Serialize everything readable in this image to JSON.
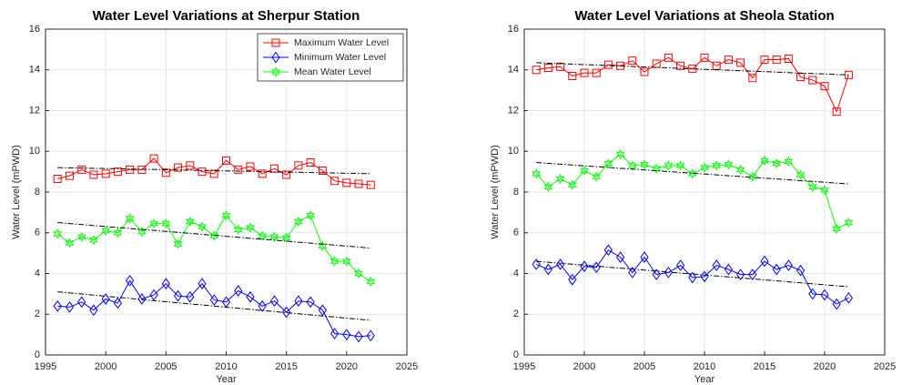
{
  "chart_data": [
    {
      "type": "line",
      "title": "Water Level Variations at Sherpur Station",
      "x_label": "Year",
      "y_label": "Water Level (mPWD)",
      "x": [
        1996,
        1997,
        1998,
        1999,
        2000,
        2001,
        2002,
        2003,
        2004,
        2005,
        2006,
        2007,
        2008,
        2009,
        2010,
        2011,
        2012,
        2013,
        2014,
        2015,
        2016,
        2017,
        2018,
        2019,
        2020,
        2021,
        2022
      ],
      "series": [
        {
          "name": "Maximum Water Level",
          "color": "#ff0000",
          "marker": "square",
          "values": [
            8.65,
            8.8,
            9.1,
            8.85,
            8.9,
            9.0,
            9.1,
            9.1,
            9.65,
            8.95,
            9.2,
            9.3,
            9.0,
            8.9,
            9.55,
            9.1,
            9.25,
            8.9,
            9.15,
            8.85,
            9.3,
            9.45,
            9.05,
            8.55,
            8.45,
            8.4,
            8.35
          ]
        },
        {
          "name": "Minimum Water Level",
          "color": "#0000ff",
          "marker": "diamond",
          "values": [
            2.4,
            2.35,
            2.6,
            2.2,
            2.75,
            2.55,
            3.65,
            2.75,
            2.95,
            3.5,
            2.9,
            2.85,
            3.5,
            2.7,
            2.6,
            3.15,
            2.85,
            2.4,
            2.65,
            2.1,
            2.65,
            2.6,
            2.2,
            1.05,
            1.0,
            0.9,
            0.95
          ]
        },
        {
          "name": "Mean Water Level",
          "color": "#00ff00",
          "marker": "hexagram",
          "values": [
            5.95,
            5.5,
            5.8,
            5.65,
            6.1,
            6.0,
            6.7,
            6.05,
            6.45,
            6.45,
            5.45,
            6.55,
            6.3,
            5.85,
            6.85,
            6.15,
            6.25,
            5.85,
            5.8,
            5.75,
            6.55,
            6.85,
            5.35,
            4.6,
            4.6,
            4.0,
            3.6
          ]
        }
      ],
      "trendlines": [
        {
          "color": "#000000",
          "x": [
            1996,
            2022
          ],
          "values": [
            9.2,
            8.9
          ]
        },
        {
          "color": "#000000",
          "x": [
            1996,
            2022
          ],
          "values": [
            3.1,
            1.7
          ]
        },
        {
          "color": "#000000",
          "x": [
            1996,
            2022
          ],
          "values": [
            6.5,
            5.25
          ]
        }
      ],
      "xlim": [
        1995,
        2025
      ],
      "xticks": [
        1995,
        2000,
        2005,
        2010,
        2015,
        2020,
        2025
      ],
      "ylim": [
        0,
        16
      ],
      "yticks": [
        0,
        2,
        4,
        6,
        8,
        10,
        12,
        14,
        16
      ],
      "grid": true,
      "legend": "upper right"
    },
    {
      "type": "line",
      "title": "Water Level Variations at Sheola Station",
      "x_label": "Year",
      "y_label": "Water Level (mPWD)",
      "x": [
        1996,
        1997,
        1998,
        1999,
        2000,
        2001,
        2002,
        2003,
        2004,
        2005,
        2006,
        2007,
        2008,
        2009,
        2010,
        2011,
        2012,
        2013,
        2014,
        2015,
        2016,
        2017,
        2018,
        2019,
        2020,
        2021,
        2022
      ],
      "series": [
        {
          "name": "Maximum Water Level",
          "color": "#ff0000",
          "marker": "square",
          "values": [
            14.0,
            14.1,
            14.15,
            13.7,
            13.85,
            13.85,
            14.25,
            14.2,
            14.45,
            13.9,
            14.3,
            14.6,
            14.2,
            14.05,
            14.6,
            14.2,
            14.5,
            14.35,
            13.6,
            14.5,
            14.5,
            14.55,
            13.65,
            13.5,
            13.2,
            11.95,
            13.75
          ]
        },
        {
          "name": "Minimum Water Level",
          "color": "#0000ff",
          "marker": "diamond",
          "values": [
            4.45,
            4.2,
            4.45,
            3.7,
            4.35,
            4.3,
            5.15,
            4.8,
            4.05,
            4.8,
            3.95,
            4.05,
            4.4,
            3.8,
            3.85,
            4.4,
            4.2,
            3.95,
            3.95,
            4.6,
            4.2,
            4.4,
            4.15,
            3.0,
            2.95,
            2.5,
            2.8
          ]
        },
        {
          "name": "Mean Water Level",
          "color": "#00ff00",
          "marker": "hexagram",
          "values": [
            8.9,
            8.25,
            8.65,
            8.35,
            9.05,
            8.75,
            9.4,
            9.85,
            9.3,
            9.35,
            9.15,
            9.3,
            9.3,
            8.9,
            9.2,
            9.3,
            9.35,
            9.1,
            8.75,
            9.55,
            9.4,
            9.5,
            8.85,
            8.25,
            8.1,
            6.2,
            6.5
          ]
        }
      ],
      "trendlines": [
        {
          "color": "#000000",
          "x": [
            1996,
            2022
          ],
          "values": [
            14.35,
            13.75
          ]
        },
        {
          "color": "#000000",
          "x": [
            1996,
            2022
          ],
          "values": [
            4.6,
            3.35
          ]
        },
        {
          "color": "#000000",
          "x": [
            1996,
            2022
          ],
          "values": [
            9.45,
            8.4
          ]
        }
      ],
      "xlim": [
        1995,
        2025
      ],
      "xticks": [
        1995,
        2000,
        2005,
        2010,
        2015,
        2020,
        2025
      ],
      "ylim": [
        0,
        16
      ],
      "yticks": [
        0,
        2,
        4,
        6,
        8,
        10,
        12,
        14,
        16
      ],
      "grid": true
    }
  ]
}
